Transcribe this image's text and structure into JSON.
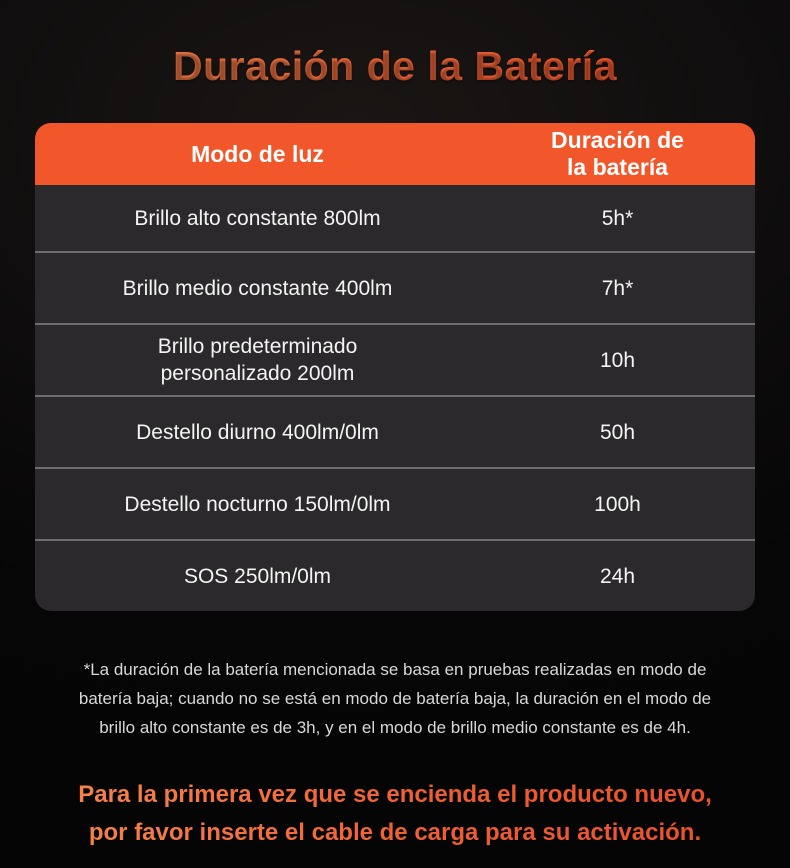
{
  "title": "Duración de la Batería",
  "table": {
    "columns": [
      "Modo de luz",
      "Duración de la batería"
    ],
    "rows": [
      {
        "mode": "Brillo alto constante 800lm",
        "duration": "5h*"
      },
      {
        "mode": "Brillo medio constante 400lm",
        "duration": "7h*"
      },
      {
        "mode": "Brillo predeterminado personalizado 200lm",
        "duration": "10h"
      },
      {
        "mode": "Destello diurno 400lm/0lm",
        "duration": "50h"
      },
      {
        "mode": "Destello nocturno 150lm/0lm",
        "duration": "100h"
      },
      {
        "mode": "SOS 250lm/0lm",
        "duration": "24h"
      }
    ]
  },
  "footnote": {
    "lines": [
      "*La duración de la batería mencionada se basa en pruebas realizadas en modo de",
      "batería baja; cuando no se está en modo de batería baja, la duración en el modo de",
      "brillo alto constante es de 3h, y en el modo de brillo medio constante es de 4h."
    ]
  },
  "activation_notice": {
    "lines": [
      "Para la primera vez que se encienda el producto nuevo,",
      "por favor inserte el cable de carga para su activación."
    ]
  },
  "colors": {
    "background": "#070707",
    "header_orange": "#f2572b",
    "row_background": "#2b292b",
    "divider_gray": "#6e6e6e",
    "title_gradient_start": "#ee8350",
    "title_gradient_end": "#f24a24",
    "footnote_text": "#d8d8d8",
    "cell_text": "#f4f4f4"
  }
}
